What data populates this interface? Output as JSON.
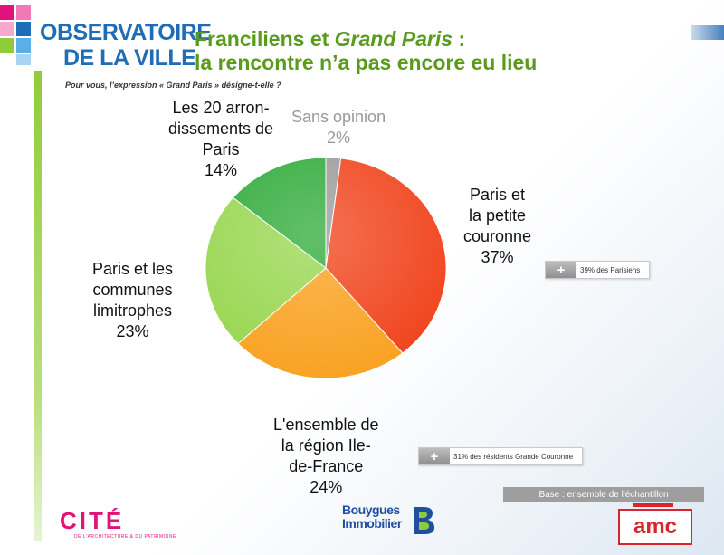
{
  "header": {
    "logo_line1": "OBSERVATOIRE",
    "logo_line2": "DE LA VILLE",
    "title_line1_part1": "Franciliens et ",
    "title_line1_part2": "Grand Paris",
    "title_line1_part3": " :",
    "title_line2": "la rencontre n’a pas encore eu lieu",
    "question": "Pour vous, l’expression « Grand Paris » désigne-t-elle ?"
  },
  "chart_data": {
    "type": "pie",
    "start_angle_deg": 0,
    "direction": "clockwise",
    "slices": [
      {
        "label": "Sans opinion",
        "value": 2,
        "value_label": "2%",
        "color": "#9a9a9a"
      },
      {
        "label": "Paris et la petite couronne",
        "value": 37,
        "value_label": "37%",
        "color": "#f0421a"
      },
      {
        "label": "L'ensemble de la région Ile-de-France",
        "value": 24,
        "value_label": "24%",
        "color": "#f9a11f"
      },
      {
        "label": "Paris et les communes limitrophes",
        "value": 23,
        "value_label": "23%",
        "color": "#97d64e"
      },
      {
        "label": "Les 20 arrondissements de Paris",
        "value": 14,
        "value_label": "14%",
        "color": "#2eaa38"
      }
    ]
  },
  "labels": {
    "sans_opinion": [
      "Sans opinion",
      "2%"
    ],
    "paris_petite_couronne": [
      "Paris et",
      "la petite",
      "couronne",
      "37%"
    ],
    "ensemble_region": [
      "L'ensemble de",
      "la région Ile-",
      "de-France",
      "24%"
    ],
    "communes_limitrophes": [
      "Paris et les",
      "communes",
      "limitrophes",
      "23%"
    ],
    "arrondissements": [
      "Les 20 arron-",
      "dissements de",
      "Paris",
      "14%"
    ]
  },
  "callouts": {
    "parisiens": {
      "symbol": "+",
      "text": "39% des Parisiens"
    },
    "grande_couronne": {
      "symbol": "+",
      "text": "31% des résidents Grande Couronne"
    }
  },
  "footer": {
    "base_note": "Base : ensemble de l'échantillon",
    "cite_word": "CITÉ",
    "cite_sub": "DE L'ARCHITECTURE & DU PATRIMOINE",
    "bouygues_line1": "Bouygues",
    "bouygues_line2": "Immobilier",
    "amc": "amc"
  },
  "colors": {
    "logo_blue": "#1f6db7",
    "headline_green": "#5a9a1c",
    "cite_magenta": "#e3117a",
    "amc_red": "#d9252a"
  }
}
